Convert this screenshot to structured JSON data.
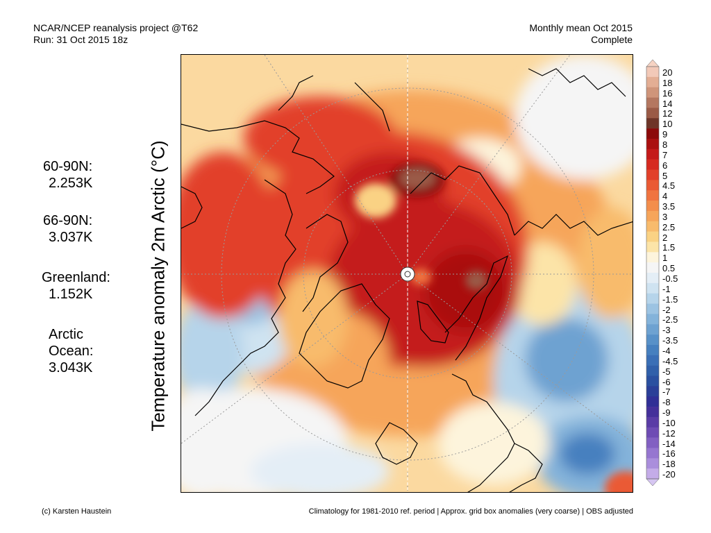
{
  "header": {
    "left_line1": "NCAR/NCEP reanalysis project @T62",
    "left_line2": "Run: 31 Oct 2015 18z",
    "right_line1": "Monthly mean Oct 2015",
    "right_line2": "Complete"
  },
  "stats": [
    {
      "label": "60-90N:",
      "value": "2.253K"
    },
    {
      "label": "66-90N:",
      "value": "3.037K"
    },
    {
      "label": "Greenland:",
      "value": "1.152K"
    },
    {
      "label_line1": "Arctic",
      "label_line2": "Ocean:",
      "value": "3.043K"
    }
  ],
  "y_axis_label": "Temperature anomaly 2m Arctic (°C)",
  "colorbar": {
    "levels": [
      "20",
      "18",
      "16",
      "14",
      "12",
      "10",
      "9",
      "8",
      "7",
      "6",
      "5",
      "4.5",
      "4",
      "3.5",
      "3",
      "2.5",
      "2",
      "1.5",
      "1",
      "0.5",
      "-0.5",
      "-1",
      "-1.5",
      "-2",
      "-2.5",
      "-3",
      "-3.5",
      "-4",
      "-4.5",
      "-5",
      "-6",
      "-7",
      "-8",
      "-9",
      "-10",
      "-12",
      "-14",
      "-16",
      "-18",
      "-20"
    ],
    "colors": [
      "#f2c9b8",
      "#e3ae94",
      "#cf957a",
      "#b47760",
      "#9a5a46",
      "#6e3528",
      "#8c0a0a",
      "#aa1010",
      "#c41a1a",
      "#d62a20",
      "#e2402a",
      "#ea5a34",
      "#f07440",
      "#f38e4c",
      "#f6a55a",
      "#f8bb6c",
      "#fad284",
      "#fce4a8",
      "#fdf4dc",
      "#f5f5f5",
      "#e4eef6",
      "#cfe3f1",
      "#b6d4ea",
      "#9cc3e2",
      "#84b3da",
      "#6ea2d1",
      "#5891c8",
      "#4680bf",
      "#3a6fb6",
      "#3060aa",
      "#2a50a0",
      "#2a3f98",
      "#302f96",
      "#44309a",
      "#5a3ca6",
      "#6e4cb4",
      "#8260c2",
      "#9676d0",
      "#aa8edc",
      "#c4ace8"
    ],
    "top_arrow_color": "#f6d3c3",
    "bottom_arrow_color": "#d6c6f2"
  },
  "footer": {
    "left": "(c) Karsten Haustein",
    "right": "Climatology for 1981-2010 ref. period | Approx. grid box anomalies (very coarse) | OBS adjusted"
  },
  "map": {
    "projection": "north polar stereographic",
    "region": "Arctic (North Pole centered)"
  }
}
